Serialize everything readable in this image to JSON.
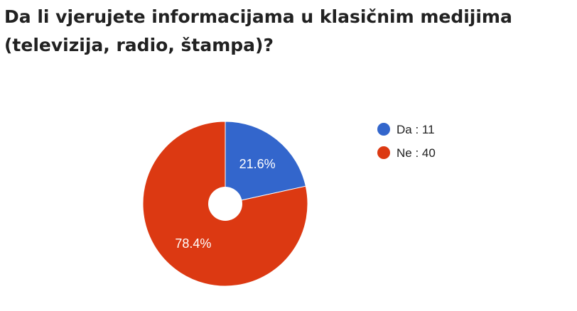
{
  "title_lines": [
    "Da li vjerujete informacijama u klasičnim medijima",
    "(televizija, radio, štampa)?"
  ],
  "colors": {
    "da": "#3366cc",
    "ne": "#dc3912"
  },
  "chart_data": {
    "type": "pie",
    "title": "Da li vjerujete informacijama u klasičnim medijima (televizija, radio, štampa)?",
    "donut": true,
    "legend_position": "right",
    "slices": [
      {
        "label": "Da",
        "value": 11,
        "percent_label": "21.6%",
        "legend_label": "Da : 11",
        "color": "#3366cc"
      },
      {
        "label": "Ne",
        "value": 40,
        "percent_label": "78.4%",
        "legend_label": "Ne : 40",
        "color": "#dc3912"
      }
    ]
  }
}
